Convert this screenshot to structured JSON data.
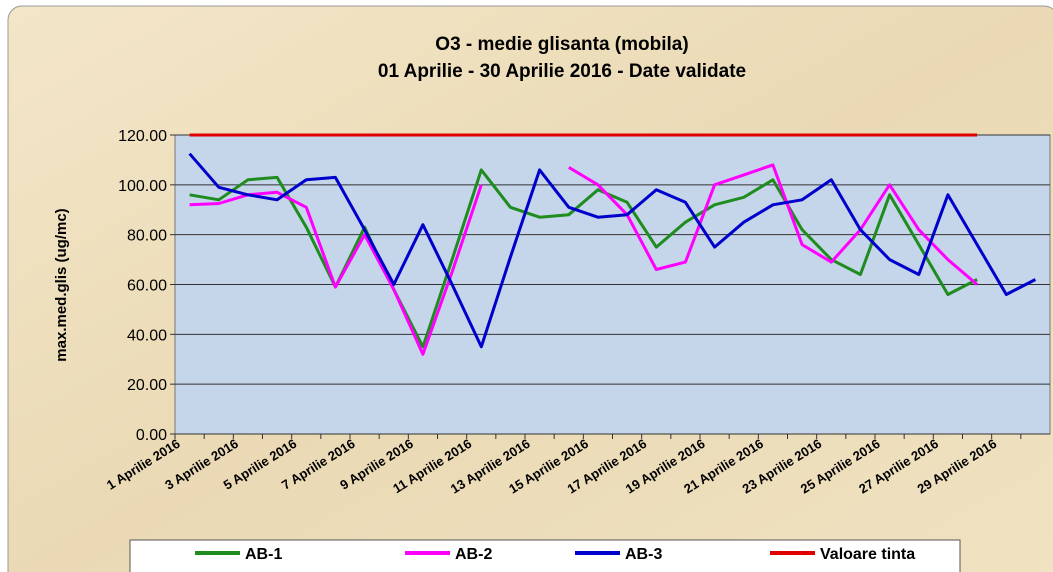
{
  "chart_data": {
    "type": "line",
    "title": "O3 - medie glisanta (mobila)",
    "subtitle": "01 Aprilie - 30 Aprilie 2016 -  Date validate",
    "y_label": "max.med.glis (ug/mc)",
    "categories": [
      "1 Aprilie 2016",
      null,
      "3 Aprilie 2016",
      null,
      "5 Aprilie 2016",
      null,
      "7 Aprilie 2016",
      null,
      "9 Aprilie 2016",
      null,
      "11 Aprilie 2016",
      null,
      "13 Aprilie 2016",
      null,
      "15 Aprilie 2016",
      null,
      "17 Aprilie 2016",
      null,
      "19 Aprilie 2016",
      null,
      "21 Aprilie 2016",
      null,
      "23 Aprilie 2016",
      null,
      "25 Aprilie 2016",
      null,
      "27 Aprilie 2016",
      null,
      "29 Aprilie 2016",
      null
    ],
    "series": [
      {
        "name": "AB-1",
        "color": "#1e8c1e",
        "values": [
          96,
          94,
          102,
          103,
          83,
          59,
          83,
          58,
          35,
          70,
          106,
          91,
          87,
          88,
          98,
          93,
          75,
          85,
          92,
          95,
          102,
          82,
          70,
          64,
          96,
          76,
          56,
          62,
          null,
          null
        ]
      },
      {
        "name": "AB-2",
        "color": "#ff00ff",
        "values": [
          92,
          92.5,
          96,
          97,
          91,
          59,
          80,
          58,
          32,
          65,
          100,
          null,
          null,
          107,
          100,
          88,
          66,
          69,
          100,
          104,
          108,
          76,
          69,
          82,
          100,
          82,
          70,
          60,
          null,
          null
        ]
      },
      {
        "name": "AB-3",
        "color": "#0000cc",
        "values": [
          112.5,
          99,
          96,
          94,
          102,
          103,
          82,
          60,
          84,
          60,
          35,
          71,
          106,
          91,
          87,
          88,
          98,
          93,
          75,
          85,
          92,
          94,
          102,
          82,
          70,
          64,
          96,
          76,
          56,
          62
        ]
      },
      {
        "name": "Valoare tinta",
        "color": "#e00000",
        "values": [
          120,
          120,
          120,
          120,
          120,
          120,
          120,
          120,
          120,
          120,
          120,
          120,
          120,
          120,
          120,
          120,
          120,
          120,
          120,
          120,
          120,
          120,
          120,
          120,
          120,
          120,
          120,
          120,
          null,
          null
        ]
      }
    ],
    "ylim": [
      0,
      120
    ],
    "yticks": [
      {
        "value": 0,
        "label": "0.00"
      },
      {
        "value": 20,
        "label": "20.00"
      },
      {
        "value": 40,
        "label": "40.00"
      },
      {
        "value": 60,
        "label": "60.00"
      },
      {
        "value": 80,
        "label": "80.00"
      },
      {
        "value": 100,
        "label": "100.00"
      },
      {
        "value": 120,
        "label": "120.00"
      }
    ],
    "grid": true,
    "legend": "bottom"
  }
}
